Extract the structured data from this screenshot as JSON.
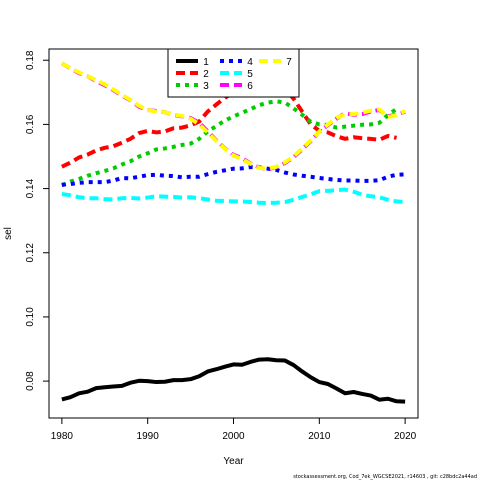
{
  "chart_data": {
    "type": "line",
    "xlabel": "Year",
    "ylabel": "sel",
    "xlim": [
      1978.5,
      2021.5
    ],
    "ylim": [
      0.0685,
      0.1835
    ],
    "x_ticks": [
      1980,
      1990,
      2000,
      2010,
      2020
    ],
    "y_ticks": [
      0.08,
      0.1,
      0.12,
      0.14,
      0.16,
      0.18
    ],
    "y_tick_labels": [
      "0.08",
      "0.10",
      "0.12",
      "0.14",
      "0.16",
      "0.18"
    ],
    "grid": false,
    "legend_position": "top-center",
    "footer": "stockassessment.org, Cod_7ek_WGCSE2021, r14603 , git: c28bdc2a44ad",
    "x": [
      1980,
      1981,
      1982,
      1983,
      1984,
      1985,
      1986,
      1987,
      1988,
      1989,
      1990,
      1991,
      1992,
      1993,
      1994,
      1995,
      1996,
      1997,
      1998,
      1999,
      2000,
      2001,
      2002,
      2003,
      2004,
      2005,
      2006,
      2007,
      2008,
      2009,
      2010,
      2011,
      2012,
      2013,
      2014,
      2015,
      2016,
      2017,
      2018,
      2019,
      2020
    ],
    "series": [
      {
        "name": "1",
        "color": "#000000",
        "dash": "solid",
        "values": [
          0.0743,
          0.075,
          0.0762,
          0.0767,
          0.0778,
          0.0781,
          0.0783,
          0.0785,
          0.0795,
          0.0801,
          0.08,
          0.0797,
          0.0798,
          0.0803,
          0.0803,
          0.0806,
          0.0815,
          0.083,
          0.0837,
          0.0845,
          0.0852,
          0.0851,
          0.086,
          0.0867,
          0.0868,
          0.0865,
          0.0864,
          0.085,
          0.083,
          0.0812,
          0.0797,
          0.0791,
          0.0777,
          0.0762,
          0.0766,
          0.076,
          0.0755,
          0.0742,
          0.0745,
          0.0737,
          0.0736
        ]
      },
      {
        "name": "2",
        "color": "#ff0000",
        "dash": "dashed",
        "values": [
          0.1468,
          0.1481,
          0.1497,
          0.1506,
          0.1519,
          0.1527,
          0.1532,
          0.1543,
          0.1555,
          0.1573,
          0.158,
          0.1575,
          0.1578,
          0.1588,
          0.159,
          0.1597,
          0.1609,
          0.164,
          0.1662,
          0.1683,
          0.17,
          0.1715,
          0.1722,
          0.1725,
          0.1722,
          0.1718,
          0.171,
          0.168,
          0.164,
          0.16,
          0.158,
          0.1575,
          0.1563,
          0.1555,
          0.156,
          0.1557,
          0.1555,
          0.1552,
          0.1564,
          0.1558,
          null
        ]
      },
      {
        "name": "3",
        "color": "#00cd00",
        "dash": "dotted",
        "values": [
          0.141,
          0.1422,
          0.143,
          0.144,
          0.1448,
          0.1455,
          0.1463,
          0.1475,
          0.1485,
          0.15,
          0.151,
          0.1522,
          0.1525,
          0.153,
          0.1536,
          0.154,
          0.1555,
          0.1578,
          0.1595,
          0.1612,
          0.1625,
          0.1636,
          0.1648,
          0.166,
          0.1668,
          0.1672,
          0.1668,
          0.165,
          0.163,
          0.1608,
          0.16,
          0.1598,
          0.159,
          0.1593,
          0.1596,
          0.1599,
          0.16,
          0.1605,
          0.163,
          0.1648,
          null
        ]
      },
      {
        "name": "4",
        "color": "#0000ff",
        "dash": "dotted",
        "values": [
          0.1412,
          0.1414,
          0.1418,
          0.142,
          0.142,
          0.142,
          0.1425,
          0.1433,
          0.1432,
          0.1437,
          0.1442,
          0.1443,
          0.144,
          0.1439,
          0.1435,
          0.1437,
          0.1437,
          0.1445,
          0.1452,
          0.1457,
          0.1462,
          0.1463,
          0.1467,
          0.1466,
          0.1462,
          0.1458,
          0.145,
          0.1444,
          0.144,
          0.1437,
          0.1433,
          0.143,
          0.1427,
          0.1425,
          0.1425,
          0.1424,
          0.1424,
          0.1426,
          0.1437,
          0.1443,
          0.1444
        ]
      },
      {
        "name": "5",
        "color": "#00ffff",
        "dash": "dashed",
        "values": [
          0.1383,
          0.1379,
          0.1373,
          0.137,
          0.137,
          0.1367,
          0.1366,
          0.137,
          0.1371,
          0.1369,
          0.1372,
          0.1376,
          0.1375,
          0.1374,
          0.1372,
          0.1373,
          0.137,
          0.1366,
          0.1362,
          0.1361,
          0.136,
          0.136,
          0.1358,
          0.1356,
          0.1355,
          0.1356,
          0.1358,
          0.1365,
          0.1374,
          0.1382,
          0.1392,
          0.1393,
          0.1395,
          0.1397,
          0.139,
          0.1381,
          0.1376,
          0.1373,
          0.1365,
          0.136,
          0.1358
        ]
      },
      {
        "name": "6",
        "color": "#ff00ff",
        "dash": "dashed",
        "values": [
          0.179,
          0.1775,
          0.176,
          0.175,
          0.1735,
          0.1722,
          0.1707,
          0.169,
          0.1675,
          0.1655,
          0.1645,
          0.1642,
          0.1638,
          0.163,
          0.1625,
          0.162,
          0.1605,
          0.1578,
          0.155,
          0.1525,
          0.1505,
          0.1495,
          0.1478,
          0.1465,
          0.146,
          0.1467,
          0.148,
          0.1498,
          0.1522,
          0.1548,
          0.1578,
          0.1598,
          0.1618,
          0.1635,
          0.163,
          0.1632,
          0.164,
          0.1645,
          0.1625,
          0.163,
          0.164
        ]
      },
      {
        "name": "7",
        "color": "#ffff00",
        "dash": "dashed",
        "values": [
          0.179,
          0.1776,
          0.1762,
          0.175,
          0.1738,
          0.1725,
          0.1709,
          0.1692,
          0.1676,
          0.1658,
          0.1645,
          0.164,
          0.1638,
          0.1631,
          0.1626,
          0.1618,
          0.16,
          0.1575,
          0.1548,
          0.1524,
          0.1503,
          0.1492,
          0.1477,
          0.1464,
          0.1462,
          0.1468,
          0.1482,
          0.15,
          0.1525,
          0.155,
          0.1578,
          0.16,
          0.162,
          0.1632,
          0.1632,
          0.1636,
          0.1643,
          0.1647,
          0.1623,
          0.1629,
          0.1642
        ]
      }
    ]
  }
}
